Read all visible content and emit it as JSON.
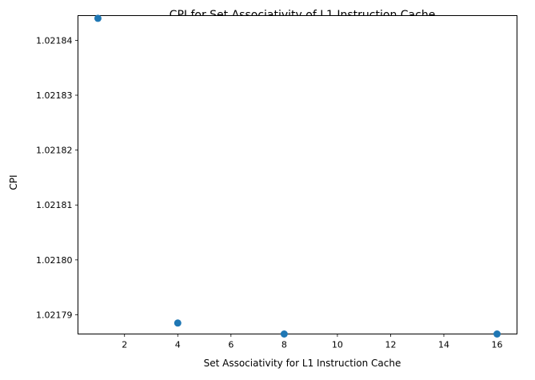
{
  "chart_data": {
    "type": "scatter",
    "title": "CPI for Set Associativity of L1 Instruction Cache",
    "xlabel": "Set Associativity for L1 Instruction Cache",
    "ylabel": "CPI",
    "x": [
      1,
      4,
      8,
      16
    ],
    "y": [
      1.021844,
      1.0217885,
      1.0217865,
      1.0217865
    ],
    "xlim": [
      0.25,
      16.75
    ],
    "ylim": [
      1.0217865,
      1.0218445
    ],
    "xticks": [
      2,
      4,
      6,
      8,
      10,
      12,
      14,
      16
    ],
    "xtick_labels": [
      "2",
      "4",
      "6",
      "8",
      "10",
      "12",
      "14",
      "16"
    ],
    "yticks": [
      1.02179,
      1.0218,
      1.02181,
      1.02182,
      1.02183,
      1.02184
    ],
    "ytick_labels": [
      "1.02179",
      "1.02180",
      "1.02181",
      "1.02182",
      "1.02183",
      "1.02184"
    ],
    "grid": false,
    "marker_color": "#1f77b4"
  }
}
